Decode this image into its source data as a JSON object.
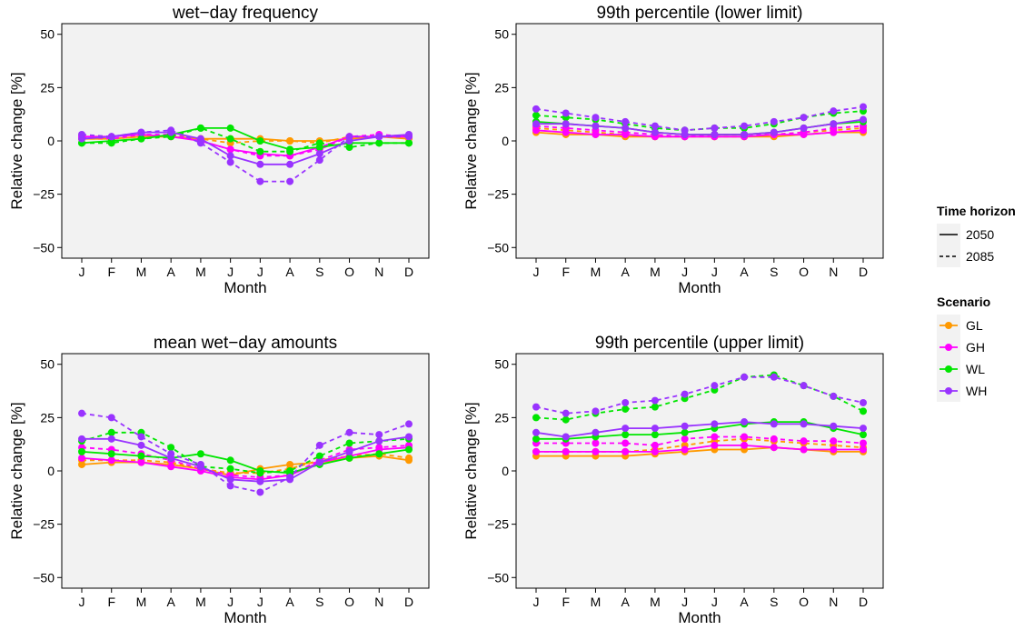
{
  "chart_data": [
    {
      "type": "line",
      "title": "wet−day frequency",
      "xlabel": "Month",
      "ylabel": "Relative change [%]",
      "categories": [
        "J",
        "F",
        "M",
        "A",
        "M",
        "J",
        "J",
        "A",
        "S",
        "O",
        "N",
        "D"
      ],
      "ylim": [
        -55,
        55
      ],
      "yticks": [
        "50",
        "25",
        "0",
        "−25",
        "−50"
      ],
      "ytick_values": [
        50,
        25,
        0,
        -25,
        -50
      ],
      "series": [
        {
          "scenario": "GL",
          "horizon": "2050",
          "values": [
            1,
            1,
            2,
            2,
            1,
            1,
            1,
            0,
            0,
            1,
            2,
            1
          ]
        },
        {
          "scenario": "GL",
          "horizon": "2085",
          "values": [
            1,
            1,
            2,
            3,
            1,
            -1,
            0,
            0,
            -1,
            2,
            2,
            2
          ]
        },
        {
          "scenario": "GH",
          "horizon": "2050",
          "values": [
            2,
            2,
            3,
            2,
            0,
            -4,
            -6,
            -7,
            -3,
            2,
            2,
            2
          ]
        },
        {
          "scenario": "GH",
          "horizon": "2085",
          "values": [
            2,
            1,
            3,
            3,
            0,
            -4,
            -7,
            -7,
            -4,
            2,
            3,
            2
          ]
        },
        {
          "scenario": "WL",
          "horizon": "2050",
          "values": [
            -1,
            0,
            1,
            3,
            6,
            6,
            0,
            -4,
            -3,
            -1,
            -1,
            -1
          ]
        },
        {
          "scenario": "WL",
          "horizon": "2085",
          "values": [
            -1,
            -1,
            1,
            2,
            6,
            1,
            -5,
            -5,
            -1,
            -3,
            -1,
            -1
          ]
        },
        {
          "scenario": "WH",
          "horizon": "2050",
          "values": [
            1,
            2,
            4,
            4,
            1,
            -7,
            -11,
            -11,
            -6,
            0,
            2,
            3
          ]
        },
        {
          "scenario": "WH",
          "horizon": "2085",
          "values": [
            3,
            2,
            4,
            5,
            -1,
            -10,
            -19,
            -19,
            -9,
            2,
            2,
            2
          ]
        }
      ]
    },
    {
      "type": "line",
      "title": "99th percentile (lower limit)",
      "xlabel": "Month",
      "ylabel": "Relative change [%]",
      "categories": [
        "J",
        "F",
        "M",
        "A",
        "M",
        "J",
        "J",
        "A",
        "S",
        "O",
        "N",
        "D"
      ],
      "ylim": [
        -55,
        55
      ],
      "yticks": [
        "50",
        "25",
        "0",
        "−25",
        "−50"
      ],
      "ytick_values": [
        50,
        25,
        0,
        -25,
        -50
      ],
      "series": [
        {
          "scenario": "GL",
          "horizon": "2050",
          "values": [
            4,
            3,
            3,
            2,
            2,
            2,
            2,
            2,
            2,
            3,
            4,
            4
          ]
        },
        {
          "scenario": "GL",
          "horizon": "2085",
          "values": [
            6,
            5,
            4,
            3,
            2,
            2,
            2,
            2,
            3,
            4,
            5,
            6
          ]
        },
        {
          "scenario": "GH",
          "horizon": "2050",
          "values": [
            5,
            4,
            3,
            3,
            2,
            2,
            2,
            2,
            3,
            3,
            4,
            5
          ]
        },
        {
          "scenario": "GH",
          "horizon": "2085",
          "values": [
            7,
            6,
            5,
            4,
            3,
            2,
            3,
            3,
            3,
            4,
            6,
            7
          ]
        },
        {
          "scenario": "WL",
          "horizon": "2050",
          "values": [
            9,
            8,
            7,
            6,
            4,
            3,
            3,
            3,
            4,
            6,
            8,
            9
          ]
        },
        {
          "scenario": "WL",
          "horizon": "2085",
          "values": [
            12,
            11,
            10,
            8,
            6,
            5,
            6,
            6,
            8,
            11,
            13,
            14
          ]
        },
        {
          "scenario": "WH",
          "horizon": "2050",
          "values": [
            8,
            8,
            7,
            6,
            4,
            3,
            3,
            3,
            4,
            6,
            8,
            10
          ]
        },
        {
          "scenario": "WH",
          "horizon": "2085",
          "values": [
            15,
            13,
            11,
            9,
            7,
            5,
            6,
            7,
            9,
            11,
            14,
            16
          ]
        }
      ]
    },
    {
      "type": "line",
      "title": "mean wet−day amounts",
      "xlabel": "Month",
      "ylabel": "Relative change [%]",
      "categories": [
        "J",
        "F",
        "M",
        "A",
        "M",
        "J",
        "J",
        "A",
        "S",
        "O",
        "N",
        "D"
      ],
      "ylim": [
        -55,
        55
      ],
      "yticks": [
        "50",
        "25",
        "0",
        "−25",
        "−50"
      ],
      "ytick_values": [
        50,
        25,
        0,
        -25,
        -50
      ],
      "series": [
        {
          "scenario": "GL",
          "horizon": "2050",
          "values": [
            3,
            4,
            4,
            3,
            1,
            -2,
            1,
            3,
            4,
            6,
            7,
            5
          ]
        },
        {
          "scenario": "GL",
          "horizon": "2085",
          "values": [
            5,
            5,
            5,
            4,
            1,
            -1,
            -1,
            1,
            5,
            7,
            8,
            6
          ]
        },
        {
          "scenario": "GH",
          "horizon": "2050",
          "values": [
            6,
            5,
            4,
            2,
            0,
            -3,
            -4,
            -2,
            4,
            7,
            10,
            11
          ]
        },
        {
          "scenario": "GH",
          "horizon": "2085",
          "values": [
            11,
            10,
            8,
            5,
            1,
            -2,
            -3,
            -2,
            5,
            10,
            11,
            12
          ]
        },
        {
          "scenario": "WL",
          "horizon": "2050",
          "values": [
            9,
            8,
            7,
            6,
            8,
            5,
            0,
            -1,
            3,
            6,
            8,
            10
          ]
        },
        {
          "scenario": "WL",
          "horizon": "2085",
          "values": [
            14,
            18,
            18,
            11,
            2,
            1,
            -1,
            0,
            7,
            13,
            14,
            15
          ]
        },
        {
          "scenario": "WH",
          "horizon": "2050",
          "values": [
            15,
            15,
            12,
            6,
            2,
            -4,
            -5,
            -4,
            4,
            9,
            14,
            16
          ]
        },
        {
          "scenario": "WH",
          "horizon": "2085",
          "values": [
            27,
            25,
            16,
            8,
            3,
            -7,
            -10,
            -3,
            12,
            18,
            17,
            22
          ]
        }
      ]
    },
    {
      "type": "line",
      "title": "99th percentile (upper limit)",
      "xlabel": "Month",
      "ylabel": "Relative change [%]",
      "categories": [
        "J",
        "F",
        "M",
        "A",
        "M",
        "J",
        "J",
        "A",
        "S",
        "O",
        "N",
        "D"
      ],
      "ylim": [
        -55,
        55
      ],
      "yticks": [
        "50",
        "25",
        "0",
        "−25",
        "−50"
      ],
      "ytick_values": [
        50,
        25,
        0,
        -25,
        -50
      ],
      "series": [
        {
          "scenario": "GL",
          "horizon": "2050",
          "values": [
            7,
            7,
            7,
            7,
            8,
            9,
            10,
            10,
            11,
            10,
            9,
            9
          ]
        },
        {
          "scenario": "GL",
          "horizon": "2085",
          "values": [
            9,
            9,
            9,
            9,
            10,
            12,
            14,
            15,
            14,
            13,
            12,
            11
          ]
        },
        {
          "scenario": "GH",
          "horizon": "2050",
          "values": [
            9,
            9,
            9,
            9,
            9,
            10,
            12,
            12,
            11,
            10,
            10,
            10
          ]
        },
        {
          "scenario": "GH",
          "horizon": "2085",
          "values": [
            13,
            13,
            13,
            13,
            12,
            15,
            16,
            16,
            15,
            14,
            14,
            13
          ]
        },
        {
          "scenario": "WL",
          "horizon": "2050",
          "values": [
            15,
            15,
            16,
            17,
            17,
            18,
            20,
            22,
            23,
            23,
            20,
            17
          ]
        },
        {
          "scenario": "WL",
          "horizon": "2085",
          "values": [
            25,
            24,
            27,
            29,
            30,
            34,
            38,
            44,
            45,
            40,
            35,
            28
          ]
        },
        {
          "scenario": "WH",
          "horizon": "2050",
          "values": [
            18,
            16,
            18,
            20,
            20,
            21,
            22,
            23,
            22,
            22,
            21,
            20
          ]
        },
        {
          "scenario": "WH",
          "horizon": "2085",
          "values": [
            30,
            27,
            28,
            32,
            33,
            36,
            40,
            44,
            44,
            40,
            35,
            32
          ]
        }
      ]
    }
  ],
  "legend": {
    "time_title": "Time horizon",
    "time_items": [
      {
        "label": "2050",
        "dash": "solid"
      },
      {
        "label": "2085",
        "dash": "dashed"
      }
    ],
    "scenario_title": "Scenario",
    "scenario_items": [
      {
        "label": "GL",
        "color": "#ff9900"
      },
      {
        "label": "GH",
        "color": "#ff00ff"
      },
      {
        "label": "WL",
        "color": "#00e600"
      },
      {
        "label": "WH",
        "color": "#9933ff"
      }
    ]
  },
  "colors": {
    "GL": "#ff9900",
    "GH": "#ff00ff",
    "WL": "#00e600",
    "WH": "#9933ff",
    "panel_bg": "#f2f2f2"
  }
}
